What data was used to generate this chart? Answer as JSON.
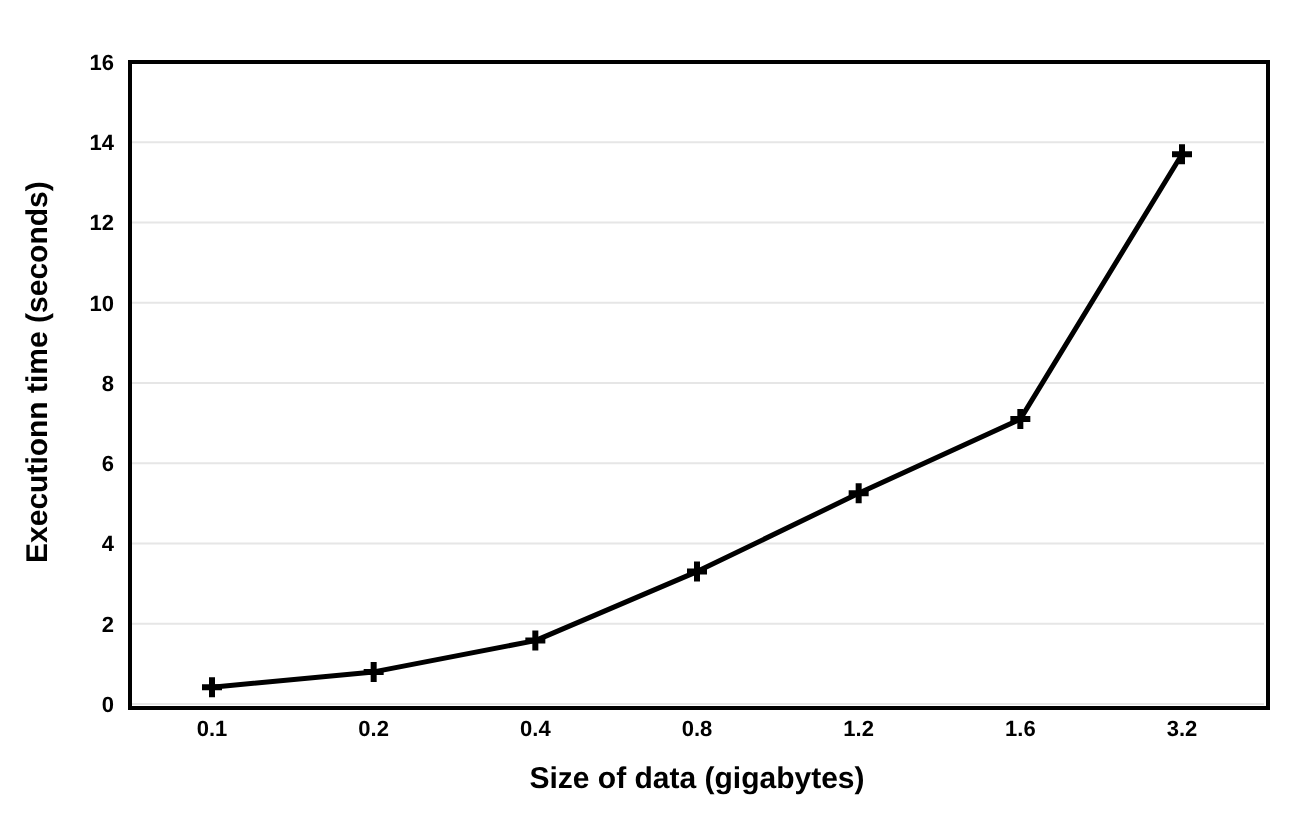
{
  "chart_data": {
    "type": "line",
    "xlabel": "Size of data (gigabytes)",
    "ylabel": "Executionn time (seconds)",
    "categories": [
      "0.1",
      "0.2",
      "0.4",
      "0.8",
      "1.2",
      "1.6",
      "3.2"
    ],
    "series": [
      {
        "color": "#000000",
        "values": [
          0.42,
          0.8,
          1.58,
          3.3,
          5.25,
          7.1,
          13.7
        ]
      }
    ],
    "ylim": [
      0,
      16
    ],
    "yticks": [
      0,
      2,
      4,
      6,
      8,
      10,
      12,
      14,
      16
    ],
    "grid": "y",
    "marker": "cross",
    "line_style": "solid",
    "legend": false
  }
}
